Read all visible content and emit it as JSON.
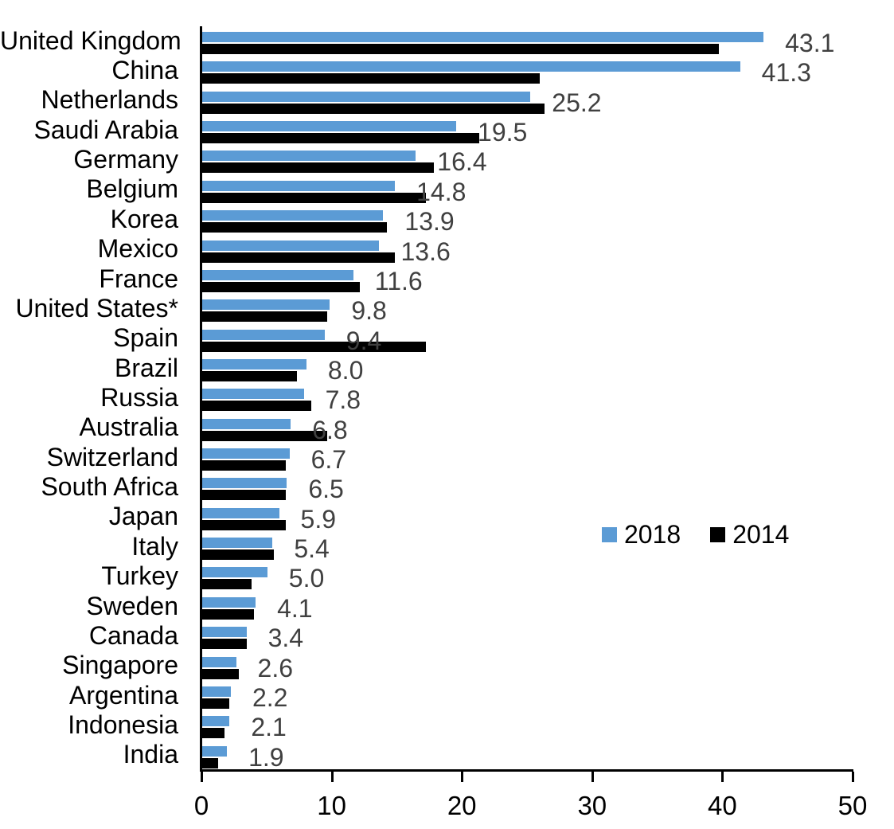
{
  "chart_data": {
    "type": "bar",
    "orientation": "horizontal",
    "title": "",
    "xlabel": "",
    "ylabel": "",
    "xlim": [
      0,
      50
    ],
    "x_ticks": [
      "0",
      "10",
      "20",
      "30",
      "40",
      "50"
    ],
    "grid": false,
    "categories": [
      "United Kingdom",
      "China",
      "Netherlands",
      "Saudi Arabia",
      "Germany",
      "Belgium",
      "Korea",
      "Mexico",
      "France",
      "United States*",
      "Spain",
      "Brazil",
      "Russia",
      "Australia",
      "Switzerland",
      "South Africa",
      "Japan",
      "Italy",
      "Turkey",
      "Sweden",
      "Canada",
      "Singapore",
      "Argentina",
      "Indonesia",
      "India"
    ],
    "series": [
      {
        "name": "2018",
        "color": "#5B9BD5",
        "values": [
          43.1,
          41.3,
          25.2,
          19.5,
          16.4,
          14.8,
          13.9,
          13.6,
          11.6,
          9.8,
          9.4,
          8.0,
          7.8,
          6.8,
          6.7,
          6.5,
          5.9,
          5.4,
          5.0,
          4.1,
          3.4,
          2.6,
          2.2,
          2.1,
          1.9
        ]
      },
      {
        "name": "2014",
        "color": "#000000",
        "values": [
          39.7,
          25.9,
          26.3,
          21.3,
          17.8,
          17.2,
          14.2,
          14.8,
          12.1,
          9.6,
          17.2,
          7.3,
          8.4,
          9.6,
          6.4,
          6.4,
          6.4,
          5.5,
          3.8,
          4.0,
          3.4,
          2.8,
          2.1,
          1.7,
          1.2
        ]
      }
    ],
    "data_labels": {
      "series": "2018",
      "color": "#404040",
      "texts": [
        "43.1",
        "41.3",
        "25.2",
        "19.5",
        "16.4",
        "14.8",
        "13.9",
        "13.6",
        "11.6",
        "9.8",
        "9.4",
        "8.0",
        "7.8",
        "6.8",
        "6.7",
        "6.5",
        "5.9",
        "5.4",
        "5.0",
        "4.1",
        "3.4",
        "2.6",
        "2.2",
        "2.1",
        "1.9"
      ]
    },
    "legend": {
      "position": "middle-right",
      "entries": [
        {
          "label": "2018",
          "color": "#5B9BD5"
        },
        {
          "label": "2014",
          "color": "#000000"
        }
      ]
    },
    "axis_color": "#000000"
  }
}
